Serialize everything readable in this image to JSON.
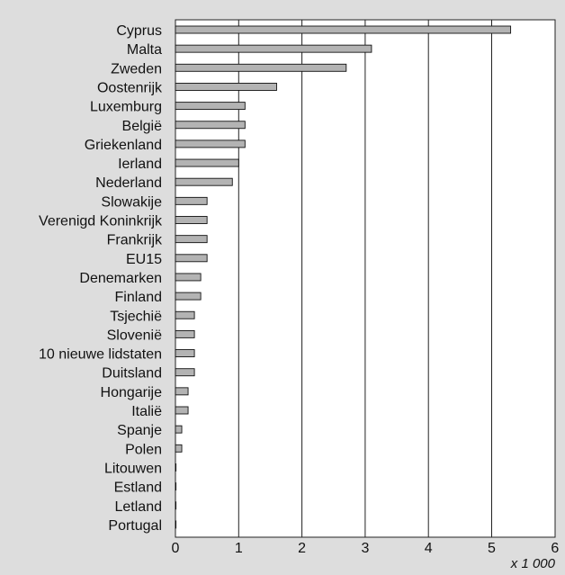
{
  "chart_data": {
    "type": "bar",
    "orientation": "horizontal",
    "categories": [
      "Cyprus",
      "Malta",
      "Zweden",
      "Oostenrijk",
      "Luxemburg",
      "België",
      "Griekenland",
      "Ierland",
      "Nederland",
      "Slowakije",
      "Verenigd Koninkrijk",
      "Frankrijk",
      "EU15",
      "Denemarken",
      "Finland",
      "Tsjechië",
      "Slovenië",
      "10 nieuwe lidstaten",
      "Duitsland",
      "Hongarije",
      "Italië",
      "Spanje",
      "Polen",
      "Litouwen",
      "Estland",
      "Letland",
      "Portugal"
    ],
    "values": [
      5.3,
      3.1,
      2.7,
      1.6,
      1.1,
      1.1,
      1.1,
      1.0,
      0.9,
      0.5,
      0.5,
      0.5,
      0.5,
      0.4,
      0.4,
      0.3,
      0.3,
      0.3,
      0.3,
      0.2,
      0.2,
      0.1,
      0.1,
      0.0,
      0.0,
      0.0,
      0.0
    ],
    "xlim": [
      0,
      6
    ],
    "xticks": [
      "0",
      "1",
      "2",
      "3",
      "4",
      "5",
      "6"
    ],
    "unit_label": "x 1 000",
    "grid": "vertical",
    "bar_color": "#b3b3b3",
    "plot_background": "#ffffff",
    "page_background": "#dddddd"
  }
}
